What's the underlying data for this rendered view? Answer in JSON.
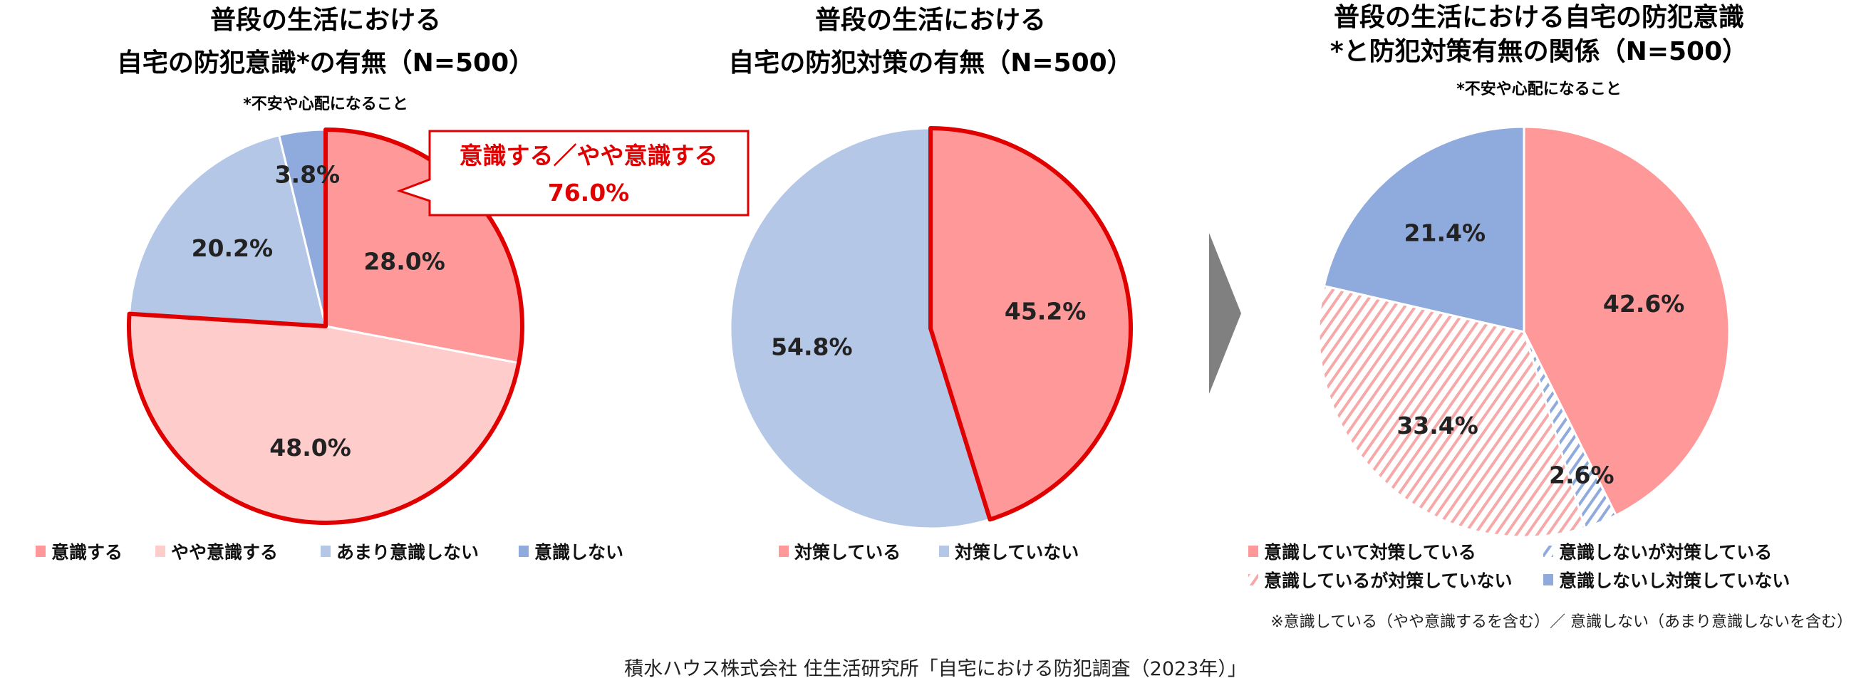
{
  "source": "積水ハウス株式会社 住生活研究所「自宅における防犯調査（2023年）」",
  "colors": {
    "red": "#FF9999",
    "pink": "#FFCCCC",
    "lightblue": "#B4C7E7",
    "blue": "#8FAADC",
    "highlight": "#E00000",
    "arrow": "#808080"
  },
  "chart_data": [
    {
      "type": "pie",
      "title": [
        "普段の生活における",
        "自宅の防犯意識*の有無（N=500）"
      ],
      "note": "*不安や心配になること",
      "categories": [
        "意識する",
        "やや意識する",
        "あまり意識しない",
        "意識しない"
      ],
      "values": [
        28.0,
        48.0,
        20.2,
        3.8
      ],
      "labels": [
        "28.0%",
        "48.0%",
        "20.2%",
        "3.8%"
      ],
      "colors": [
        "#FF9999",
        "#FFCCCC",
        "#B4C7E7",
        "#8FAADC"
      ],
      "highlight": {
        "slices": [
          0,
          1
        ],
        "text": [
          "意識する／やや意識する",
          "76.0%"
        ]
      },
      "legend": "bottom"
    },
    {
      "type": "pie",
      "title": [
        "普段の生活における",
        "自宅の防犯対策の有無（N=500）"
      ],
      "categories": [
        "対策している",
        "対策していない"
      ],
      "values": [
        45.2,
        54.8
      ],
      "labels": [
        "45.2%",
        "54.8%"
      ],
      "colors": [
        "#FF9999",
        "#B4C7E7"
      ],
      "highlight": {
        "slices": [
          0
        ]
      },
      "legend": "bottom"
    },
    {
      "type": "pie",
      "title": [
        "普段の生活における自宅の防犯意識",
        "*と防犯対策有無の関係（N=500）"
      ],
      "note": "*不安や心配になること",
      "categories": [
        "意識していて対策している",
        "意識しないが対策している",
        "意識しているが対策していない",
        "意識しないし対策していない"
      ],
      "values": [
        42.6,
        2.6,
        33.4,
        21.4
      ],
      "labels": [
        "42.6%",
        "2.6%",
        "33.4%",
        "21.4%"
      ],
      "colors": [
        "#FF9999",
        "#8FAADC",
        "#FF9999",
        "#8FAADC"
      ],
      "hatched": [
        false,
        true,
        true,
        false
      ],
      "legend": "bottom",
      "footnote": "※意識している（やや意識するを含む）／ 意識しない（あまり意識しないを含む）"
    }
  ]
}
